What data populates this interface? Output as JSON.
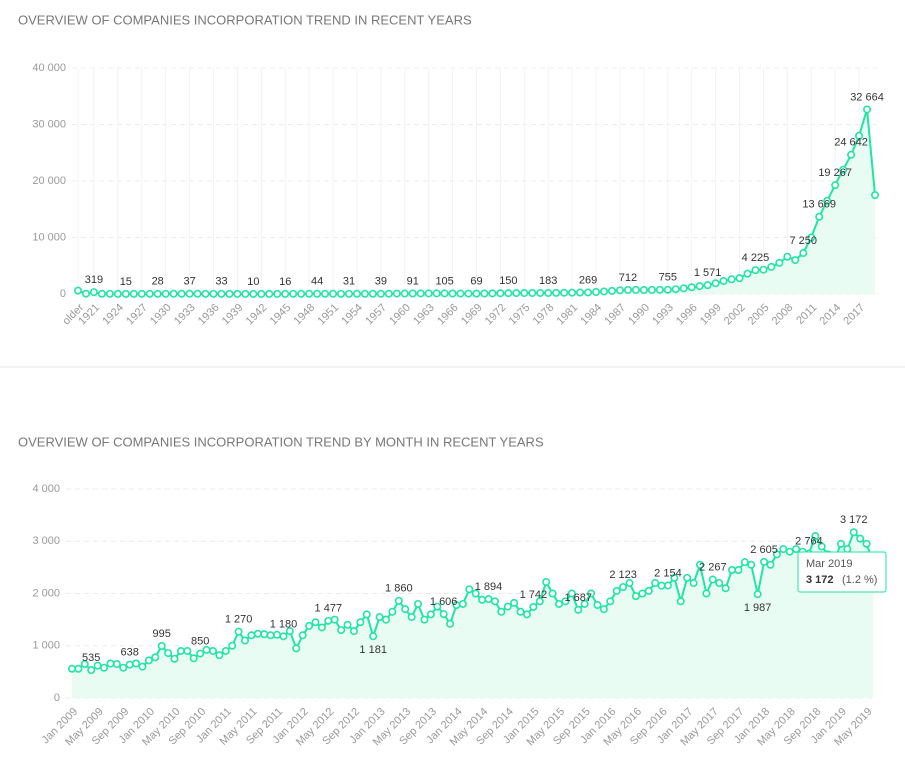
{
  "chart_data": [
    {
      "type": "line",
      "title": "OVERVIEW OF COMPANIES INCORPORATION TREND IN RECENT YEARS",
      "color": "#1ee6a3",
      "grid": true,
      "categories": [
        "older",
        null,
        "1921",
        null,
        null,
        "1924",
        null,
        null,
        "1927",
        null,
        null,
        "1930",
        null,
        null,
        "1933",
        null,
        null,
        "1936",
        null,
        null,
        "1939",
        null,
        null,
        "1942",
        null,
        null,
        "1945",
        null,
        null,
        "1948",
        null,
        null,
        "1951",
        null,
        null,
        "1954",
        null,
        null,
        "1957",
        null,
        null,
        "1960",
        null,
        null,
        "1963",
        null,
        null,
        "1966",
        null,
        null,
        "1969",
        null,
        null,
        "1972",
        null,
        null,
        "1975",
        null,
        null,
        "1978",
        null,
        null,
        "1981",
        null,
        null,
        "1984",
        null,
        null,
        "1987",
        null,
        null,
        "1990",
        null,
        null,
        "1993",
        null,
        null,
        "1996",
        null,
        null,
        "1999",
        null,
        null,
        "2002",
        null,
        null,
        "2005",
        null,
        null,
        "2008",
        null,
        null,
        "2011",
        null,
        null,
        "2014",
        null,
        null,
        "2017",
        null,
        null
      ],
      "values": [
        600,
        50,
        319,
        40,
        30,
        20,
        15,
        20,
        25,
        30,
        28,
        30,
        35,
        40,
        37,
        35,
        30,
        30,
        33,
        20,
        15,
        12,
        10,
        12,
        14,
        15,
        16,
        30,
        40,
        45,
        44,
        40,
        35,
        30,
        31,
        35,
        38,
        40,
        39,
        50,
        70,
        80,
        91,
        95,
        100,
        100,
        105,
        90,
        80,
        70,
        69,
        90,
        110,
        130,
        150,
        160,
        170,
        175,
        180,
        183,
        200,
        220,
        240,
        255,
        269,
        350,
        450,
        550,
        650,
        712,
        720,
        700,
        720,
        740,
        755,
        850,
        1000,
        1200,
        1400,
        1571,
        1900,
        2300,
        2600,
        2800,
        3600,
        4225,
        4300,
        4800,
        5500,
        6600,
        6000,
        7250,
        10000,
        13669,
        16500,
        19267,
        22000,
        24642,
        28000,
        32664,
        17500
      ],
      "value_labels": [
        null,
        null,
        "319",
        null,
        null,
        null,
        "15",
        null,
        null,
        null,
        "28",
        null,
        null,
        null,
        "37",
        null,
        null,
        null,
        "33",
        null,
        null,
        null,
        "10",
        null,
        null,
        null,
        "16",
        null,
        null,
        null,
        "44",
        null,
        null,
        null,
        "31",
        null,
        null,
        null,
        "39",
        null,
        null,
        null,
        "91",
        null,
        null,
        null,
        "105",
        null,
        null,
        null,
        "69",
        null,
        null,
        null,
        "150",
        null,
        null,
        null,
        null,
        "183",
        null,
        null,
        null,
        null,
        "269",
        null,
        null,
        null,
        null,
        "712",
        null,
        null,
        null,
        null,
        "755",
        null,
        null,
        null,
        null,
        "1 571",
        null,
        null,
        null,
        null,
        null,
        "4 225",
        null,
        null,
        null,
        null,
        null,
        "7 250",
        null,
        "13 669",
        null,
        "19 267",
        null,
        "24 642",
        null,
        "32 664",
        null
      ],
      "ylim": [
        0,
        40000
      ],
      "yticks": [
        0,
        {
          "value": 10000,
          "label": "10 000"
        },
        {
          "value": 20000,
          "label": "20 000"
        },
        {
          "value": 30000,
          "label": "30 000"
        },
        {
          "value": 40000,
          "label": "40 000"
        }
      ]
    },
    {
      "type": "line",
      "title": "OVERVIEW OF COMPANIES INCORPORATION TREND BY MONTH IN RECENT YEARS",
      "color": "#1ee6a3",
      "grid": true,
      "categories": [
        "Jan 2009",
        null,
        null,
        null,
        "May 2009",
        null,
        null,
        null,
        "Sep 2009",
        null,
        null,
        null,
        "Jan 2010",
        null,
        null,
        null,
        "May 2010",
        null,
        null,
        null,
        "Sep 2010",
        null,
        null,
        null,
        "Jan 2011",
        null,
        null,
        null,
        "May 2011",
        null,
        null,
        null,
        "Sep 2011",
        null,
        null,
        null,
        "Jan 2012",
        null,
        null,
        null,
        "May 2012",
        null,
        null,
        null,
        "Sep 2012",
        null,
        null,
        null,
        "Jan 2013",
        null,
        null,
        null,
        "May 2013",
        null,
        null,
        null,
        "Sep 2013",
        null,
        null,
        null,
        "Jan 2014",
        null,
        null,
        null,
        "May 2014",
        null,
        null,
        null,
        "Sep 2014",
        null,
        null,
        null,
        "Jan 2015",
        null,
        null,
        null,
        "May 2015",
        null,
        null,
        null,
        "Sep 2015",
        null,
        null,
        null,
        "Jan 2016",
        null,
        null,
        null,
        "May 2016",
        null,
        null,
        null,
        "Sep 2016",
        null,
        null,
        null,
        "Jan 2017",
        null,
        null,
        null,
        "May 2017",
        null,
        null,
        null,
        "Sep 2017",
        null,
        null,
        null,
        "Jan 2018",
        null,
        null,
        null,
        "May 2018",
        null,
        null,
        null,
        "Sep 2018",
        null,
        null,
        null,
        "Jan 2019",
        null,
        null,
        null,
        "May 2019",
        null
      ],
      "values": [
        560,
        560,
        650,
        535,
        620,
        580,
        660,
        650,
        580,
        638,
        660,
        600,
        720,
        780,
        995,
        860,
        750,
        900,
        900,
        760,
        850,
        920,
        900,
        820,
        900,
        1000,
        1270,
        1100,
        1200,
        1230,
        1220,
        1200,
        1210,
        1180,
        1280,
        950,
        1200,
        1380,
        1450,
        1350,
        1477,
        1500,
        1300,
        1400,
        1280,
        1450,
        1600,
        1181,
        1550,
        1500,
        1650,
        1860,
        1700,
        1550,
        1800,
        1500,
        1600,
        1750,
        1606,
        1420,
        1780,
        1800,
        2080,
        2000,
        1880,
        1894,
        1850,
        1650,
        1750,
        1820,
        1650,
        1600,
        1742,
        1850,
        2220,
        2000,
        1800,
        1850,
        2000,
        1687,
        1800,
        2000,
        1780,
        1700,
        1850,
        2050,
        2123,
        2200,
        1950,
        2000,
        2050,
        2200,
        2150,
        2154,
        2300,
        1850,
        2300,
        2200,
        2550,
        2000,
        2267,
        2200,
        2100,
        2450,
        2450,
        2600,
        2550,
        1987,
        2605,
        2550,
        2750,
        2850,
        2800,
        2850,
        2800,
        2764,
        3100,
        2900,
        2750,
        2650,
        2950,
        2850,
        3172,
        3050,
        2950,
        2600
      ],
      "value_labels": [
        null,
        null,
        null,
        "535",
        null,
        null,
        null,
        null,
        null,
        "638",
        null,
        null,
        null,
        null,
        "995",
        null,
        null,
        null,
        null,
        null,
        "850",
        null,
        null,
        null,
        null,
        null,
        "1 270",
        null,
        null,
        null,
        null,
        null,
        null,
        "1 180",
        null,
        null,
        null,
        null,
        null,
        null,
        "1 477",
        null,
        null,
        null,
        null,
        null,
        null,
        "1 181",
        null,
        null,
        null,
        "1 860",
        null,
        null,
        null,
        null,
        null,
        null,
        "1 606",
        null,
        null,
        null,
        null,
        null,
        null,
        "1 894",
        null,
        null,
        null,
        null,
        null,
        null,
        "1 742",
        null,
        null,
        null,
        null,
        null,
        null,
        "1 687",
        null,
        null,
        null,
        null,
        null,
        null,
        "2 123",
        null,
        null,
        null,
        null,
        null,
        null,
        "2 154",
        null,
        null,
        null,
        null,
        null,
        null,
        "2 267",
        null,
        null,
        null,
        null,
        null,
        null,
        "1 987",
        "2 605",
        null,
        null,
        null,
        null,
        null,
        null,
        "2 764",
        null,
        null,
        null,
        null,
        null,
        null,
        "3 172",
        null,
        null,
        null
      ],
      "ylim": [
        0,
        4000
      ],
      "yticks": [
        0,
        {
          "value": 1000,
          "label": "1 000"
        },
        {
          "value": 2000,
          "label": "2 000"
        },
        {
          "value": 3000,
          "label": "3 000"
        },
        {
          "value": 4000,
          "label": "4 000"
        }
      ],
      "tooltip": {
        "title": "Mar 2019",
        "value": "3 172",
        "change": "(1.2 %)"
      }
    }
  ]
}
